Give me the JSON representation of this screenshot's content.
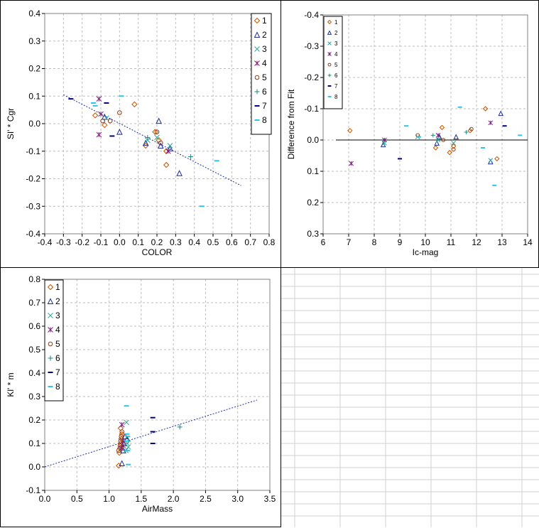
{
  "series_styles": [
    {
      "name": "1",
      "marker": "diamond",
      "color": "#cc5500"
    },
    {
      "name": "2",
      "marker": "triangle",
      "color": "#1f2f99"
    },
    {
      "name": "3",
      "marker": "x",
      "color": "#2aa79b"
    },
    {
      "name": "4",
      "marker": "asterisk",
      "color": "#7a1f7a"
    },
    {
      "name": "5",
      "marker": "circle",
      "color": "#8a3d1a"
    },
    {
      "name": "6",
      "marker": "plus",
      "color": "#1a8a7a"
    },
    {
      "name": "7",
      "marker": "dash",
      "color": "#000080"
    },
    {
      "name": "8",
      "marker": "dash",
      "color": "#2ec4e6"
    }
  ],
  "chart_data": [
    {
      "id": "color-chart",
      "type": "scatter",
      "xlabel": "COLOR",
      "ylabel": "SI' * Cgr",
      "xlim": [
        -0.4,
        0.8
      ],
      "ylim": [
        -0.4,
        0.4
      ],
      "xticks": [
        -0.4,
        -0.3,
        -0.2,
        -0.1,
        0.0,
        0.1,
        0.2,
        0.3,
        0.4,
        0.5,
        0.6,
        0.7,
        0.8
      ],
      "xtick_labels": [
        "-0.4",
        "-0.3",
        "-0.2",
        "-0.1",
        "0.0",
        "0.1",
        "0.2",
        "0.3",
        "0.4",
        "0.5",
        "0.6",
        "0.7",
        "0.8"
      ],
      "yticks": [
        0.4,
        0.3,
        0.2,
        0.1,
        0.0,
        -0.1,
        -0.2,
        -0.3,
        -0.4
      ],
      "ytick_labels": [
        "0.4",
        "0.3",
        "0.2",
        "0.1",
        "0.0",
        "-0.1",
        "-0.2",
        "-0.3",
        "-0.4"
      ],
      "y_reversed": false,
      "grid": true,
      "legend_position": "top-right",
      "fit_line": {
        "x": [
          -0.3,
          0.65
        ],
        "y": [
          0.105,
          -0.225
        ],
        "style": "dotted"
      },
      "series": [
        {
          "name": "1",
          "points": [
            [
              -0.13,
              0.03
            ],
            [
              -0.08,
              -0.005
            ],
            [
              0.08,
              0.07
            ],
            [
              0.14,
              -0.08
            ],
            [
              0.19,
              -0.03
            ],
            [
              0.21,
              -0.06
            ],
            [
              0.25,
              -0.15
            ],
            [
              0.25,
              -0.1
            ]
          ]
        },
        {
          "name": "2",
          "points": [
            [
              -0.08,
              0.025
            ],
            [
              0.0,
              -0.03
            ],
            [
              0.14,
              -0.07
            ],
            [
              0.21,
              0.01
            ],
            [
              0.22,
              -0.08
            ],
            [
              0.27,
              -0.09
            ],
            [
              0.32,
              -0.18
            ]
          ]
        },
        {
          "name": "3",
          "points": [
            [
              -0.07,
              0.02
            ],
            [
              0.15,
              -0.06
            ],
            [
              0.2,
              -0.05
            ],
            [
              0.27,
              -0.08
            ]
          ]
        },
        {
          "name": "4",
          "points": [
            [
              -0.11,
              0.09
            ],
            [
              -0.11,
              -0.04
            ],
            [
              -0.1,
              0.035
            ],
            [
              0.26,
              -0.1
            ]
          ]
        },
        {
          "name": "5",
          "points": [
            [
              -0.09,
              0.01
            ],
            [
              -0.05,
              0.01
            ],
            [
              0.0,
              0.04
            ],
            [
              0.2,
              -0.03
            ],
            [
              0.22,
              -0.07
            ]
          ]
        },
        {
          "name": "6",
          "points": [
            [
              0.15,
              -0.05
            ],
            [
              0.38,
              -0.12
            ]
          ]
        },
        {
          "name": "7",
          "points": [
            [
              -0.26,
              0.09
            ],
            [
              -0.07,
              0.075
            ],
            [
              -0.04,
              -0.045
            ]
          ]
        },
        {
          "name": "8",
          "points": [
            [
              -0.14,
              0.075
            ],
            [
              -0.13,
              0.065
            ],
            [
              0.01,
              0.1
            ],
            [
              0.44,
              -0.3
            ],
            [
              0.52,
              -0.135
            ]
          ]
        }
      ]
    },
    {
      "id": "residual-chart",
      "type": "scatter",
      "xlabel": "Ic-mag",
      "ylabel": "Difference from Fit",
      "xlim": [
        6,
        14
      ],
      "ylim": [
        -0.4,
        0.3
      ],
      "xticks": [
        6,
        7,
        8,
        9,
        10,
        11,
        12,
        13,
        14
      ],
      "xtick_labels": [
        "6",
        "7",
        "8",
        "9",
        "10",
        "11",
        "12",
        "13",
        "14"
      ],
      "yticks": [
        -0.4,
        -0.3,
        -0.2,
        -0.1,
        0.0,
        0.1,
        0.2,
        0.3
      ],
      "ytick_labels": [
        "-0.4",
        "-0.3",
        "-0.2",
        "-0.1",
        "0.0",
        "0.1",
        "0.2",
        "0.3"
      ],
      "y_reversed": true,
      "grid": true,
      "legend_position": "top-left",
      "fit_line": {
        "x": [
          6.5,
          14
        ],
        "y": [
          0.0,
          0.0
        ],
        "style": "solid"
      },
      "series": [
        {
          "name": "1",
          "points": [
            [
              7.05,
              -0.03
            ],
            [
              10.4,
              0.025
            ],
            [
              10.65,
              -0.04
            ],
            [
              10.95,
              0.04
            ],
            [
              11.1,
              0.02
            ],
            [
              11.75,
              -0.03
            ],
            [
              12.35,
              -0.1
            ],
            [
              12.8,
              0.06
            ]
          ]
        },
        {
          "name": "2",
          "points": [
            [
              8.35,
              0.015
            ],
            [
              10.45,
              0.01
            ],
            [
              10.55,
              -0.01
            ],
            [
              11.2,
              -0.01
            ],
            [
              12.55,
              0.07
            ],
            [
              12.95,
              -0.085
            ]
          ]
        },
        {
          "name": "3",
          "points": [
            [
              8.4,
              0.01
            ],
            [
              9.7,
              -0.01
            ],
            [
              10.5,
              0.0
            ],
            [
              11.1,
              0.01
            ],
            [
              12.55,
              0.065
            ]
          ]
        },
        {
          "name": "4",
          "points": [
            [
              7.1,
              0.075
            ],
            [
              8.4,
              0.0
            ],
            [
              10.5,
              -0.015
            ],
            [
              12.55,
              -0.055
            ]
          ]
        },
        {
          "name": "5",
          "points": [
            [
              9.7,
              -0.015
            ],
            [
              10.7,
              0.0
            ],
            [
              11.1,
              0.03
            ],
            [
              11.8,
              -0.035
            ]
          ]
        },
        {
          "name": "6",
          "points": [
            [
              10.3,
              -0.015
            ],
            [
              11.6,
              -0.025
            ]
          ]
        },
        {
          "name": "7",
          "points": [
            [
              9.0,
              0.06
            ],
            [
              13.1,
              -0.045
            ]
          ]
        },
        {
          "name": "8",
          "points": [
            [
              9.25,
              -0.045
            ],
            [
              9.75,
              -0.01
            ],
            [
              11.35,
              -0.105
            ],
            [
              12.25,
              0.025
            ],
            [
              12.7,
              0.145
            ],
            [
              13.7,
              -0.015
            ]
          ]
        }
      ]
    },
    {
      "id": "airmass-chart",
      "type": "scatter",
      "xlabel": "AirMass",
      "ylabel": "Kl' * m",
      "xlim": [
        0,
        3.5
      ],
      "ylim": [
        -0.1,
        0.8
      ],
      "xticks": [
        0,
        0.5,
        1.0,
        1.5,
        2.0,
        2.5,
        3.0,
        3.5
      ],
      "xtick_labels": [
        "0.0",
        "0.5",
        "1.0",
        "1.5",
        "2.0",
        "2.5",
        "3.0",
        "3.5"
      ],
      "yticks": [
        0.8,
        0.7,
        0.6,
        0.5,
        0.4,
        0.3,
        0.2,
        0.1,
        0.0,
        -0.1
      ],
      "ytick_labels": [
        "0.8",
        "0.7",
        "0.6",
        "0.5",
        "0.4",
        "0.3",
        "0.2",
        "0.1",
        "0.0",
        "-0.1"
      ],
      "y_reversed": false,
      "grid": true,
      "legend_position": "top-left",
      "fit_line": {
        "x": [
          0.0,
          3.3
        ],
        "y": [
          0.0,
          0.285
        ],
        "style": "dotted"
      },
      "series": [
        {
          "name": "1",
          "points": [
            [
              1.15,
              0.005
            ],
            [
              1.16,
              0.06
            ],
            [
              1.17,
              0.08
            ],
            [
              1.18,
              0.1
            ],
            [
              1.19,
              0.12
            ],
            [
              1.2,
              0.14
            ],
            [
              1.18,
              0.165
            ]
          ]
        },
        {
          "name": "2",
          "points": [
            [
              1.2,
              0.015
            ],
            [
              1.22,
              0.07
            ],
            [
              1.23,
              0.1
            ],
            [
              1.25,
              0.13
            ],
            [
              1.28,
              0.12
            ]
          ]
        },
        {
          "name": "3",
          "points": [
            [
              1.27,
              0.19
            ],
            [
              1.28,
              0.1
            ],
            [
              1.3,
              0.085
            ],
            [
              1.26,
              0.07
            ]
          ]
        },
        {
          "name": "4",
          "points": [
            [
              1.2,
              0.18
            ],
            [
              1.21,
              0.11
            ],
            [
              1.22,
              0.09
            ],
            [
              1.19,
              0.08
            ]
          ]
        },
        {
          "name": "5",
          "points": [
            [
              1.15,
              0.07
            ],
            [
              1.17,
              0.09
            ],
            [
              1.18,
              0.11
            ],
            [
              1.19,
              0.13
            ],
            [
              1.2,
              0.15
            ]
          ]
        },
        {
          "name": "6",
          "points": [
            [
              1.3,
              0.11
            ],
            [
              2.1,
              0.17
            ]
          ]
        },
        {
          "name": "7",
          "points": [
            [
              1.68,
              0.21
            ],
            [
              1.68,
              0.15
            ],
            [
              1.68,
              0.1
            ]
          ]
        },
        {
          "name": "8",
          "points": [
            [
              1.27,
              0.26
            ],
            [
              1.28,
              0.14
            ],
            [
              1.29,
              0.13
            ],
            [
              1.28,
              0.11
            ],
            [
              1.29,
              0.07
            ],
            [
              1.3,
              0.01
            ]
          ]
        }
      ]
    }
  ]
}
